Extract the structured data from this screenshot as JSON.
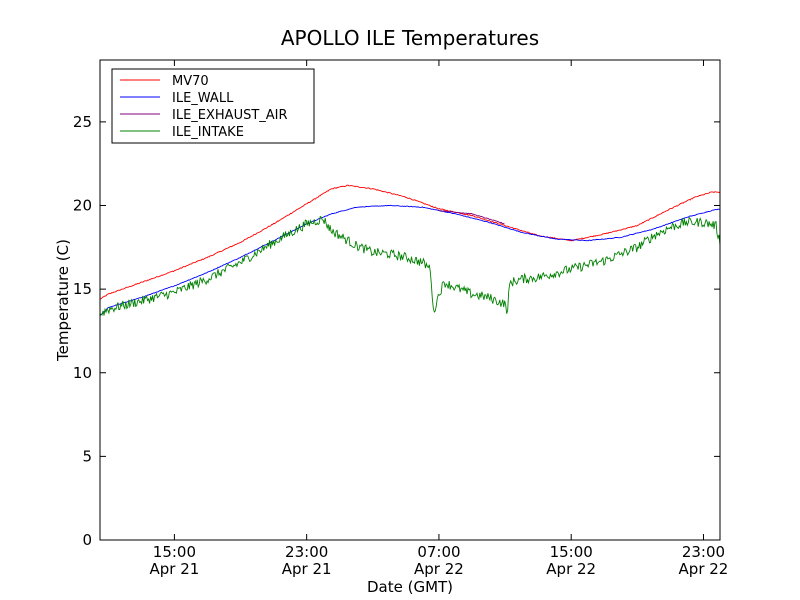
{
  "chart_data": {
    "type": "line",
    "title": "APOLLO ILE Temperatures",
    "xlabel": "Date (GMT)",
    "ylabel": "Temperature (C)",
    "x_unit": "hours",
    "xlim": [
      "2025-04-21T10:30",
      "2025-04-23T00:00"
    ],
    "ylim": [
      0,
      28.7
    ],
    "x_ticks": [
      {
        "at": "2025-04-21T15:00",
        "time": "15:00",
        "date": "Apr 21"
      },
      {
        "at": "2025-04-21T23:00",
        "time": "23:00",
        "date": "Apr 21"
      },
      {
        "at": "2025-04-22T07:00",
        "time": "07:00",
        "date": "Apr 22"
      },
      {
        "at": "2025-04-22T15:00",
        "time": "15:00",
        "date": "Apr 22"
      },
      {
        "at": "2025-04-22T23:00",
        "time": "23:00",
        "date": "Apr 22"
      }
    ],
    "y_ticks": [
      0,
      5,
      10,
      15,
      20,
      25
    ],
    "grid": false,
    "legend_position": "top-left",
    "series": [
      {
        "name": "MV70",
        "color": "#ff0000",
        "noise": 0.03,
        "x": [
          "2025-04-21T10:30",
          "2025-04-21T11:00",
          "2025-04-21T13:00",
          "2025-04-21T15:00",
          "2025-04-21T17:00",
          "2025-04-21T19:00",
          "2025-04-21T21:00",
          "2025-04-21T23:00",
          "2025-04-22T00:30",
          "2025-04-22T01:30",
          "2025-04-22T03:00",
          "2025-04-22T05:00",
          "2025-04-22T07:00",
          "2025-04-22T09:00",
          "2025-04-22T11:00",
          "2025-04-22T13:00",
          "2025-04-22T15:00",
          "2025-04-22T17:00",
          "2025-04-22T19:00",
          "2025-04-22T21:00",
          "2025-04-22T22:30",
          "2025-04-22T23:30",
          "2025-04-23T00:00"
        ],
        "y": [
          14.4,
          14.7,
          15.4,
          16.1,
          16.9,
          17.8,
          18.9,
          20.1,
          21.0,
          21.2,
          21.0,
          20.5,
          19.8,
          19.4,
          18.8,
          18.2,
          17.9,
          18.3,
          18.8,
          19.8,
          20.5,
          20.8,
          20.8
        ]
      },
      {
        "name": "ILE_WALL",
        "color": "#0000ff",
        "noise": 0.02,
        "x": [
          "2025-04-21T10:30",
          "2025-04-21T11:00",
          "2025-04-21T13:00",
          "2025-04-21T15:00",
          "2025-04-21T17:00",
          "2025-04-21T19:00",
          "2025-04-21T21:00",
          "2025-04-21T23:00",
          "2025-04-22T00:30",
          "2025-04-22T02:00",
          "2025-04-22T04:00",
          "2025-04-22T06:00",
          "2025-04-22T08:00",
          "2025-04-22T10:00",
          "2025-04-22T12:00",
          "2025-04-22T14:00",
          "2025-04-22T16:00",
          "2025-04-22T18:00",
          "2025-04-22T20:00",
          "2025-04-22T22:00",
          "2025-04-22T23:30",
          "2025-04-23T00:00"
        ],
        "y": [
          13.4,
          13.9,
          14.5,
          15.2,
          16.0,
          16.9,
          17.9,
          18.9,
          19.5,
          19.9,
          20.0,
          19.9,
          19.5,
          19.0,
          18.4,
          18.0,
          17.9,
          18.1,
          18.6,
          19.3,
          19.7,
          19.8
        ]
      },
      {
        "name": "ILE_EXHAUST_AIR",
        "color": "#800080",
        "noise": 0.02,
        "x": [
          "2025-04-22T07:00",
          "2025-04-22T08:00",
          "2025-04-22T09:00",
          "2025-04-22T10:00",
          "2025-04-22T11:00"
        ],
        "y": [
          19.7,
          19.6,
          19.5,
          19.2,
          18.9
        ]
      },
      {
        "name": "ILE_INTAKE",
        "color": "#008000",
        "noise": 0.28,
        "x": [
          "2025-04-21T10:30",
          "2025-04-21T11:00",
          "2025-04-21T13:00",
          "2025-04-21T15:00",
          "2025-04-21T17:00",
          "2025-04-21T19:00",
          "2025-04-21T21:00",
          "2025-04-21T23:00",
          "2025-04-22T00:00",
          "2025-04-22T00:30",
          "2025-04-22T01:00",
          "2025-04-22T02:00",
          "2025-04-22T03:00",
          "2025-04-22T04:00",
          "2025-04-22T05:00",
          "2025-04-22T06:00",
          "2025-04-22T06:30",
          "2025-04-22T06:40",
          "2025-04-22T06:50",
          "2025-04-22T07:05",
          "2025-04-22T07:20",
          "2025-04-22T08:00",
          "2025-04-22T09:00",
          "2025-04-22T10:00",
          "2025-04-22T11:00",
          "2025-04-22T11:10",
          "2025-04-22T11:15",
          "2025-04-22T11:20",
          "2025-04-22T12:00",
          "2025-04-22T13:00",
          "2025-04-22T15:00",
          "2025-04-22T17:00",
          "2025-04-22T19:00",
          "2025-04-22T20:00",
          "2025-04-22T21:00",
          "2025-04-22T22:00",
          "2025-04-22T23:00",
          "2025-04-22T23:45",
          "2025-04-23T00:00"
        ],
        "y": [
          13.5,
          13.8,
          14.3,
          14.8,
          15.6,
          16.6,
          17.8,
          18.9,
          19.2,
          18.5,
          18.2,
          17.6,
          17.2,
          17.1,
          16.9,
          16.6,
          16.2,
          13.5,
          14.2,
          14.9,
          15.4,
          15.1,
          14.7,
          14.5,
          14.1,
          13.6,
          15.2,
          15.4,
          15.6,
          15.7,
          16.2,
          16.7,
          17.5,
          18.2,
          18.7,
          19.0,
          19.0,
          18.8,
          17.8
        ]
      }
    ]
  }
}
